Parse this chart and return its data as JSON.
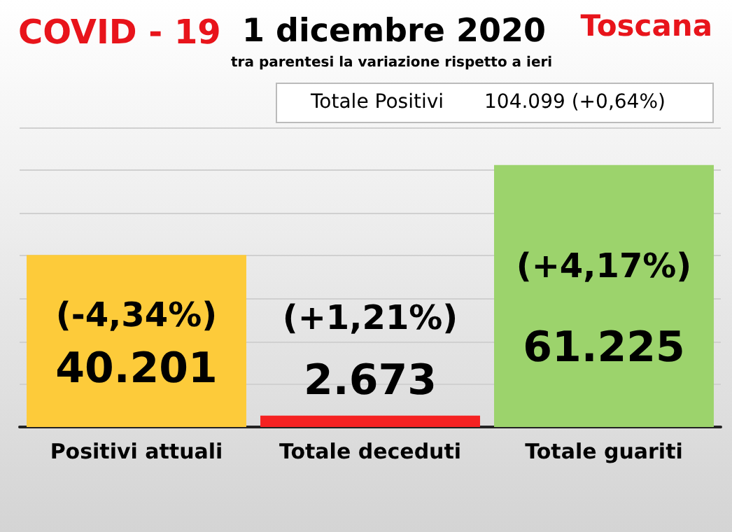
{
  "chart_data": {
    "type": "bar",
    "title": "COVID - 19",
    "subtitle": "1 dicembre 2020",
    "categories": [
      "Positivi attuali",
      "Totale deceduti",
      "Totale guariti"
    ],
    "values": [
      40201,
      2673,
      61225
    ],
    "colors": [
      "#fdcb3a",
      "#f52222",
      "#9cd36c"
    ],
    "value_labels": [
      "40.201",
      "2.673",
      "61.225"
    ],
    "ylim": [
      0,
      70000
    ],
    "yticks": [
      {
        "value": 0,
        "label": null
      },
      {
        "value": 10000,
        "label": null
      },
      {
        "value": 20000,
        "label": null
      },
      {
        "value": 30000,
        "label": null
      },
      {
        "value": 40000,
        "label": null
      },
      {
        "value": 50000,
        "label": null
      },
      {
        "value": 60000,
        "label": null
      },
      {
        "value": 70000,
        "label": null
      }
    ],
    "grid": "y",
    "tick_labels": "x",
    "annotations": [
      "tra parentesi la variazione rispetto a ieri",
      "Toscana",
      "Totale Positivi",
      "104.099 (+0,64%)",
      "(-4,34%)",
      "(+1,21%)",
      "(+4,17%)"
    ]
  }
}
